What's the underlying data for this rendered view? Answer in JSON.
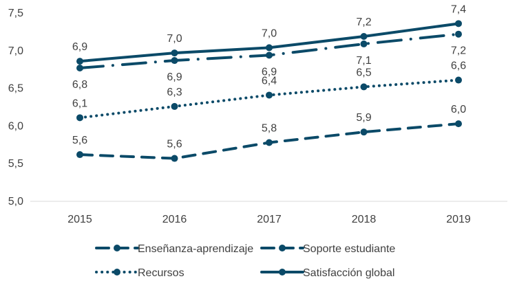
{
  "chart_data": {
    "type": "line",
    "title": "",
    "xlabel": "",
    "ylabel": "",
    "categories": [
      "2015",
      "2016",
      "2017",
      "2018",
      "2019"
    ],
    "ylim": [
      5.0,
      7.5
    ],
    "ytick_labels": [
      "5,0",
      "5,5",
      "6,0",
      "6,5",
      "7,0",
      "7,5"
    ],
    "grid": false,
    "legend_position": "bottom",
    "color": "#0b4a68",
    "series": [
      {
        "name": "Enseñanza-aprendizaje",
        "style": "dashed",
        "values": [
          5.62,
          5.57,
          5.78,
          5.92,
          6.03
        ],
        "labels": [
          "5,6",
          "5,6",
          "5,8",
          "5,9",
          "6,0"
        ],
        "label_position": "above"
      },
      {
        "name": "Soporte estudiante",
        "style": "dash-dot",
        "values": [
          6.77,
          6.87,
          6.94,
          7.09,
          7.22
        ],
        "labels": [
          "6,8",
          "6,9",
          "6,9",
          "7,1",
          "7,2"
        ],
        "label_position": "below"
      },
      {
        "name": "Recursos",
        "style": "dotted",
        "values": [
          6.11,
          6.26,
          6.41,
          6.52,
          6.61
        ],
        "labels": [
          "6,1",
          "6,3",
          "6,4",
          "6,5",
          "6,6"
        ],
        "label_position": "above"
      },
      {
        "name": "Satisfacción global",
        "style": "solid",
        "values": [
          6.86,
          6.97,
          7.04,
          7.19,
          7.36
        ],
        "labels": [
          "6,9",
          "7,0",
          "7,0",
          "7,2",
          "7,4"
        ],
        "label_position": "above"
      }
    ]
  }
}
